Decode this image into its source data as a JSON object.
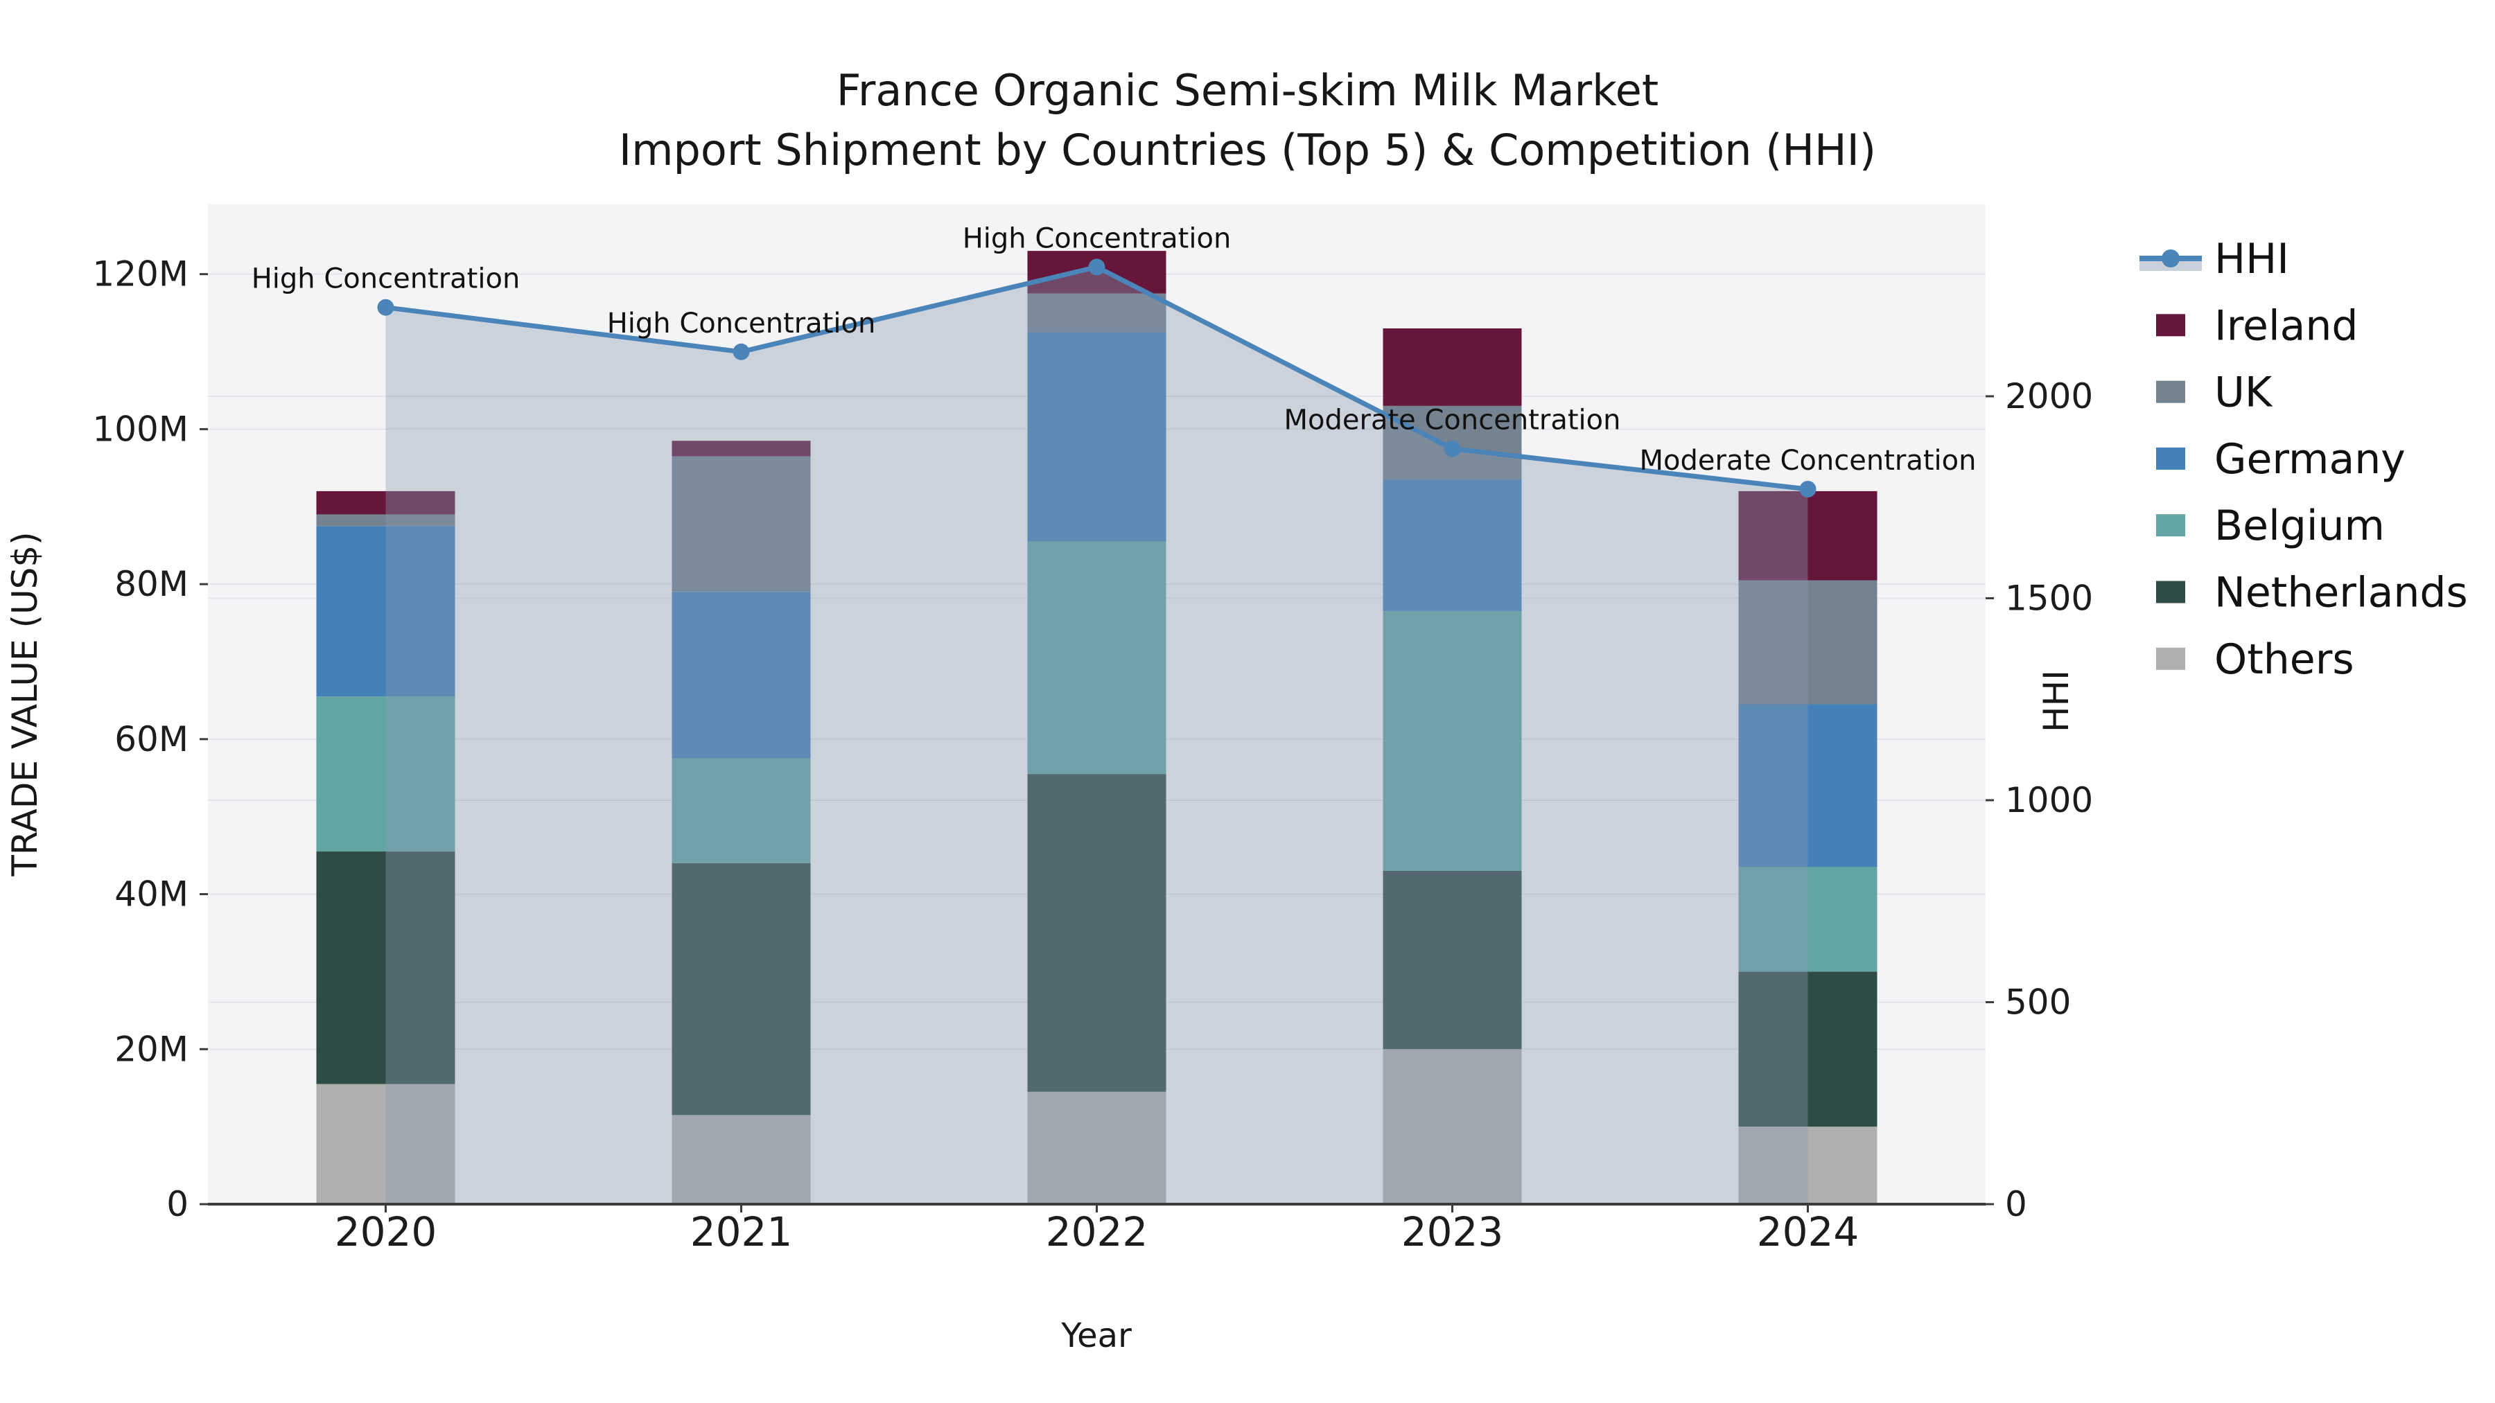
{
  "figure": {
    "title_line1": "France Organic Semi-skim Milk Market",
    "title_line2": "Import Shipment by Countries (Top 5) & Competition (HHI)",
    "xlabel": "Year",
    "ylabel_left": "TRADE VALUE (US$)",
    "ylabel_right": "HHI"
  },
  "chart_data": {
    "type": "stacked-bar+line",
    "categories": [
      "2020",
      "2021",
      "2022",
      "2023",
      "2024"
    ],
    "bar_series": [
      {
        "name": "Others",
        "color": "#afafad",
        "values": [
          15.5,
          11.5,
          14.5,
          20.0,
          10.0
        ]
      },
      {
        "name": "Netherlands",
        "color": "#2f4b46",
        "values": [
          30.0,
          32.5,
          41.0,
          23.0,
          20.0
        ]
      },
      {
        "name": "Belgium",
        "color": "#62a5a2",
        "values": [
          20.0,
          13.5,
          30.0,
          33.5,
          13.5
        ]
      },
      {
        "name": "Germany",
        "color": "#4381b8",
        "values": [
          22.0,
          21.5,
          27.0,
          17.0,
          21.0
        ]
      },
      {
        "name": "UK",
        "color": "#75828f",
        "values": [
          1.5,
          17.5,
          5.0,
          9.5,
          16.0
        ]
      },
      {
        "name": "Ireland",
        "color": "#65163a",
        "values": [
          3.0,
          2.0,
          5.5,
          10.0,
          11.5
        ]
      }
    ],
    "bar_totals": [
      92.0,
      98.5,
      123.0,
      113.0,
      92.0
    ],
    "line_series": {
      "name": "HHI",
      "axis": "right",
      "color": "#4a84b8",
      "area_fill": "rgba(137,155,180,0.38)",
      "values": [
        2220,
        2110,
        2320,
        1870,
        1770
      ]
    },
    "annotations": [
      {
        "category": "2020",
        "text": "High Concentration"
      },
      {
        "category": "2021",
        "text": "High Concentration"
      },
      {
        "category": "2022",
        "text": "High Concentration"
      },
      {
        "category": "2023",
        "text": "Moderate Concentration"
      },
      {
        "category": "2024",
        "text": "Moderate Concentration"
      }
    ],
    "axes": {
      "left_ticks": [
        "0",
        "20M",
        "40M",
        "60M",
        "80M",
        "100M",
        "120M"
      ],
      "left_tick_values": [
        0,
        20,
        40,
        60,
        80,
        100,
        120
      ],
      "left_ylim": [
        0,
        129
      ],
      "right_ticks": [
        "0",
        "500",
        "1000",
        "1500",
        "2000"
      ],
      "right_tick_values": [
        0,
        500,
        1000,
        1500,
        2000
      ],
      "right_ylim": [
        0,
        2475
      ],
      "grid": true,
      "plot_bg": "#f4f4f6",
      "grid_color": "#e5e6e9",
      "spine_color": "#3b3b3b",
      "text_color": "#1c1c1c"
    },
    "legend": {
      "position": "right",
      "entries": [
        {
          "label": "HHI",
          "type": "line",
          "color": "#4a84b8",
          "band_color": "#c9d1dd"
        },
        {
          "label": "Ireland",
          "type": "patch",
          "color": "#65163a"
        },
        {
          "label": "UK",
          "type": "patch",
          "color": "#75828f"
        },
        {
          "label": "Germany",
          "type": "patch",
          "color": "#4381b8"
        },
        {
          "label": "Belgium",
          "type": "patch",
          "color": "#62a5a2"
        },
        {
          "label": "Netherlands",
          "type": "patch",
          "color": "#2f4b46"
        },
        {
          "label": "Others",
          "type": "patch",
          "color": "#afafad"
        }
      ]
    }
  }
}
